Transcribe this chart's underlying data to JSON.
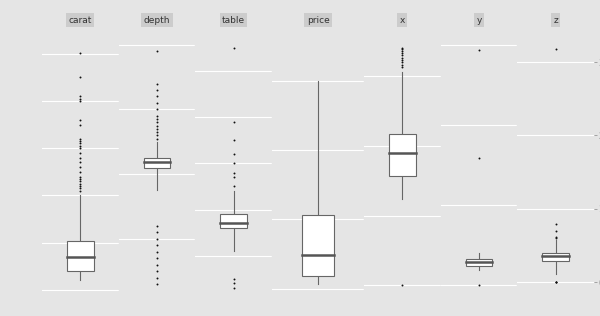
{
  "variables": [
    "carat",
    "depth",
    "table",
    "price",
    "x",
    "y",
    "z"
  ],
  "background_color": "#e5e5e5",
  "box_fill": "#ffffff",
  "box_edge": "#666666",
  "median_color": "#555555",
  "whisker_color": "#666666",
  "outlier_color": "#111111",
  "grid_color": "#ffffff",
  "label_color": "#888888",
  "title_bg": "#cccccc",
  "title_color": "#333333",
  "carat": {
    "q1": 0.4,
    "median": 0.7,
    "q3": 1.04,
    "min_whisk": 0.2,
    "max_whisk": 2.0,
    "outliers_high": [
      2.1,
      2.15,
      2.2,
      2.25,
      2.3,
      2.35,
      2.4,
      2.5,
      2.6,
      2.7,
      2.8,
      2.9,
      3.0,
      3.05,
      3.1,
      3.15,
      3.2,
      3.5,
      3.6,
      4.0,
      4.05,
      4.1,
      4.5,
      5.01
    ],
    "outliers_low": [],
    "ylim": [
      -0.15,
      5.6
    ],
    "yticks": [
      0,
      1,
      2,
      3,
      4,
      5
    ]
  },
  "depth": {
    "q1": 61.0,
    "median": 61.8,
    "q3": 62.5,
    "min_whisk": 57.5,
    "max_whisk": 65.0,
    "outliers_high": [
      65.5,
      66.0,
      66.5,
      67.0,
      67.5,
      68.0,
      68.5,
      69.0,
      70.0,
      71.0,
      72.0,
      73.0,
      74.0,
      79.0
    ],
    "outliers_low": [
      43.0,
      44.0,
      45.0,
      46.0,
      47.0,
      48.0,
      49.0,
      50.0,
      51.0,
      52.0
    ],
    "ylim": [
      41,
      83
    ],
    "yticks": [
      50,
      60,
      70,
      80
    ]
  },
  "table": {
    "q1": 56.0,
    "median": 57.0,
    "q3": 59.0,
    "min_whisk": 51.0,
    "max_whisk": 64.0,
    "outliers_high": [
      65.0,
      67.0,
      68.0,
      70.0,
      72.0,
      75.0,
      79.0,
      95.0
    ],
    "outliers_low": [
      43.0,
      44.0,
      45.0
    ],
    "ylim": [
      41,
      100
    ],
    "yticks": [
      50,
      60,
      70,
      80,
      90
    ]
  },
  "price": {
    "q1": 950,
    "median": 2401,
    "q3": 5324,
    "min_whisk": 326,
    "max_whisk": 15000,
    "outliers_high": [],
    "outliers_low": [],
    "ylim": [
      -600,
      19000
    ],
    "yticks": [
      0,
      5000,
      10000,
      15000
    ]
  },
  "x": {
    "q1": 4.71,
    "median": 5.7,
    "q3": 6.54,
    "min_whisk": 3.73,
    "max_whisk": 9.2,
    "outliers_high": [
      9.4,
      9.5,
      9.6,
      9.7,
      9.8,
      9.9,
      10.0,
      10.1,
      10.2,
      10.23
    ],
    "outliers_low": [
      0.0
    ],
    "ylim": [
      -0.5,
      11.2
    ],
    "yticks": [
      0,
      3,
      6,
      9
    ]
  },
  "y": {
    "q1": 4.72,
    "median": 5.71,
    "q3": 6.54,
    "min_whisk": 3.68,
    "max_whisk": 8.06,
    "outliers_high": [
      31.8,
      58.9
    ],
    "outliers_low": [
      0.0
    ],
    "ylim": [
      -3,
      65
    ],
    "yticks": [
      0,
      20,
      40,
      60
    ]
  },
  "z": {
    "q1": 2.91,
    "median": 3.53,
    "q3": 4.04,
    "min_whisk": 1.07,
    "max_whisk": 5.8,
    "outliers_high": [
      6.0,
      6.2,
      7.0,
      8.0,
      31.8
    ],
    "outliers_low": [
      0.0,
      0.0,
      0.0
    ],
    "ylim": [
      -2,
      35
    ],
    "yticks": [
      0,
      10,
      20,
      30
    ]
  },
  "widths": [
    1.0,
    1.0,
    1.0,
    1.2,
    1.0,
    1.0,
    1.0
  ]
}
